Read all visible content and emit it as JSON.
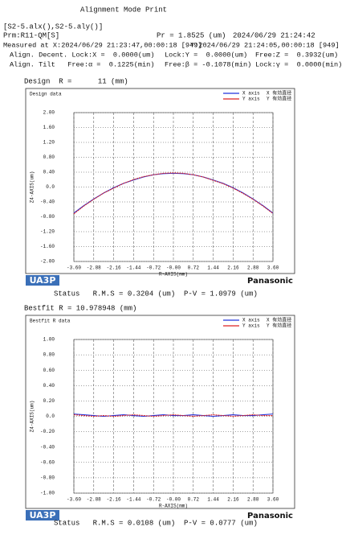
{
  "header": {
    "title": "Alignment Mode Print",
    "files": "[S2-5.alx(),S2-5.aly()]",
    "param": "Prm:R11-QM[S]",
    "pr": "Pr = 1.8525 (um)",
    "printed": "2024/06/29 21:24:42",
    "measured_x": "Measured at X:2024/06/29 21:23:47,00:00:18 [949]",
    "measured_y": "Y:2024/06/29 21:24:05,00:00:18 [949]",
    "decent": [
      "Align. Decent. Lock:X =  0.0000(um)",
      "Lock:Y =  0.0000(um)",
      "Free:Z =  0.3932(um)"
    ],
    "tilt": [
      "Align. Tilt   Free:α =  0.1225(min)",
      "Free:β = -0.1078(min)",
      "Lock:γ =  0.0000(min)"
    ],
    "design": "Design  R =      11 (mm)"
  },
  "chart_data": [
    {
      "type": "line",
      "title": "Design data",
      "xlabel": "R-AXIS(mm)",
      "ylabel": "Z4-AXIS(um)",
      "logo_left": "UA3P",
      "logo_right": "Panasonic",
      "status": "Status   R.M.S = 0.3204 (um)  P-V = 1.0979 (um)",
      "x": [
        -3.6,
        -3.24,
        -2.88,
        -2.52,
        -2.16,
        -1.8,
        -1.44,
        -1.08,
        -0.72,
        -0.36,
        0,
        0.36,
        0.72,
        1.08,
        1.44,
        1.8,
        2.16,
        2.52,
        2.88,
        3.24,
        3.6
      ],
      "series": [
        {
          "name": "X axis",
          "note": "X 有効直径",
          "color": "#2233dd",
          "values": [
            -0.7,
            -0.5,
            -0.32,
            -0.16,
            -0.02,
            0.1,
            0.19,
            0.27,
            0.33,
            0.36,
            0.37,
            0.36,
            0.33,
            0.27,
            0.19,
            0.1,
            -0.02,
            -0.16,
            -0.32,
            -0.5,
            -0.7
          ]
        },
        {
          "name": "Y axis",
          "note": "Y 有効直径",
          "color": "#dd2222",
          "values": [
            -0.72,
            -0.51,
            -0.33,
            -0.16,
            -0.03,
            0.1,
            0.2,
            0.28,
            0.33,
            0.37,
            0.38,
            0.37,
            0.33,
            0.27,
            0.18,
            0.09,
            -0.03,
            -0.17,
            -0.33,
            -0.51,
            -0.71
          ]
        }
      ],
      "xlim": [
        -3.6,
        3.6
      ],
      "xticks": [
        {
          "value": -3.6,
          "label": "-3.60"
        },
        {
          "value": -2.88,
          "label": "-2.88"
        },
        {
          "value": -2.16,
          "label": "-2.16"
        },
        {
          "value": -1.44,
          "label": "-1.44"
        },
        {
          "value": -0.72,
          "label": "-0.72"
        },
        {
          "value": 0,
          "label": "-0.00"
        },
        {
          "value": 0.72,
          "label": "0.72"
        },
        {
          "value": 1.44,
          "label": "1.44"
        },
        {
          "value": 2.16,
          "label": "2.16"
        },
        {
          "value": 2.88,
          "label": "2.88"
        },
        {
          "value": 3.6,
          "label": "3.60"
        }
      ],
      "ylim": [
        -2,
        2
      ],
      "yticks": [
        {
          "value": 2,
          "label": "2.00"
        },
        {
          "value": 1.6,
          "label": "1.60"
        },
        {
          "value": 1.2,
          "label": "1.20"
        },
        {
          "value": 0.8,
          "label": "0.80"
        },
        {
          "value": 0.4,
          "label": "0.40"
        },
        {
          "value": 0,
          "label": "0.0"
        },
        {
          "value": -0.4,
          "label": "-0.40"
        },
        {
          "value": -0.8,
          "label": "-0.80"
        },
        {
          "value": -1.2,
          "label": "-1.20"
        },
        {
          "value": -1.6,
          "label": "-1.60"
        },
        {
          "value": -2,
          "label": "-2.00"
        }
      ],
      "grid": true,
      "caption": "Design  R =      11 (mm)"
    },
    {
      "type": "line",
      "title": "Bestfit R data",
      "xlabel": "R-AXIS(mm)",
      "ylabel": "Z4-AXIS(um)",
      "logo_left": "UA3P",
      "logo_right": "Panasonic",
      "status": "Status   R.M.S = 0.0108 (um)  P-V = 0.0777 (um)",
      "x": [
        -3.6,
        -3.24,
        -2.88,
        -2.52,
        -2.16,
        -1.8,
        -1.44,
        -1.08,
        -0.72,
        -0.36,
        0,
        0.36,
        0.72,
        1.08,
        1.44,
        1.8,
        2.16,
        2.52,
        2.88,
        3.24,
        3.6
      ],
      "series": [
        {
          "name": "X axis",
          "note": "X 有効直径",
          "color": "#2233dd",
          "values": [
            0.03,
            0.02,
            0.01,
            0,
            0.01,
            0.02,
            0.01,
            0,
            0.01,
            0.02,
            0.01,
            0.01,
            0.02,
            0.01,
            0,
            0.01,
            0.02,
            0.01,
            0.01,
            0.02,
            0.03
          ]
        },
        {
          "name": "Y axis",
          "note": "Y 有効直径",
          "color": "#dd2222",
          "values": [
            0.02,
            0.01,
            0,
            0.01,
            0,
            0.01,
            0.02,
            0.01,
            0,
            0.01,
            0.02,
            0.01,
            0,
            0.01,
            0.02,
            0.01,
            0,
            0.01,
            0.02,
            0.01,
            0.01
          ]
        }
      ],
      "xlim": [
        -3.6,
        3.6
      ],
      "xticks": [
        {
          "value": -3.6,
          "label": "-3.60"
        },
        {
          "value": -2.88,
          "label": "-2.88"
        },
        {
          "value": -2.16,
          "label": "-2.16"
        },
        {
          "value": -1.44,
          "label": "-1.44"
        },
        {
          "value": -0.72,
          "label": "-0.72"
        },
        {
          "value": 0,
          "label": "-0.00"
        },
        {
          "value": 0.72,
          "label": "0.72"
        },
        {
          "value": 1.44,
          "label": "1.44"
        },
        {
          "value": 2.16,
          "label": "2.16"
        },
        {
          "value": 2.88,
          "label": "2.88"
        },
        {
          "value": 3.6,
          "label": "3.60"
        }
      ],
      "ylim": [
        -1,
        1
      ],
      "yticks": [
        {
          "value": 1,
          "label": "1.00"
        },
        {
          "value": 0.8,
          "label": "0.80"
        },
        {
          "value": 0.6,
          "label": "0.60"
        },
        {
          "value": 0.4,
          "label": "0.40"
        },
        {
          "value": 0.2,
          "label": "0.20"
        },
        {
          "value": 0,
          "label": "0.0"
        },
        {
          "value": -0.2,
          "label": "-0.20"
        },
        {
          "value": -0.4,
          "label": "-0.40"
        },
        {
          "value": -0.6,
          "label": "-0.60"
        },
        {
          "value": -0.8,
          "label": "-0.80"
        },
        {
          "value": -1,
          "label": "-1.00"
        }
      ],
      "grid": true,
      "caption": "Bestfit R = 10.978948 (mm)"
    }
  ]
}
